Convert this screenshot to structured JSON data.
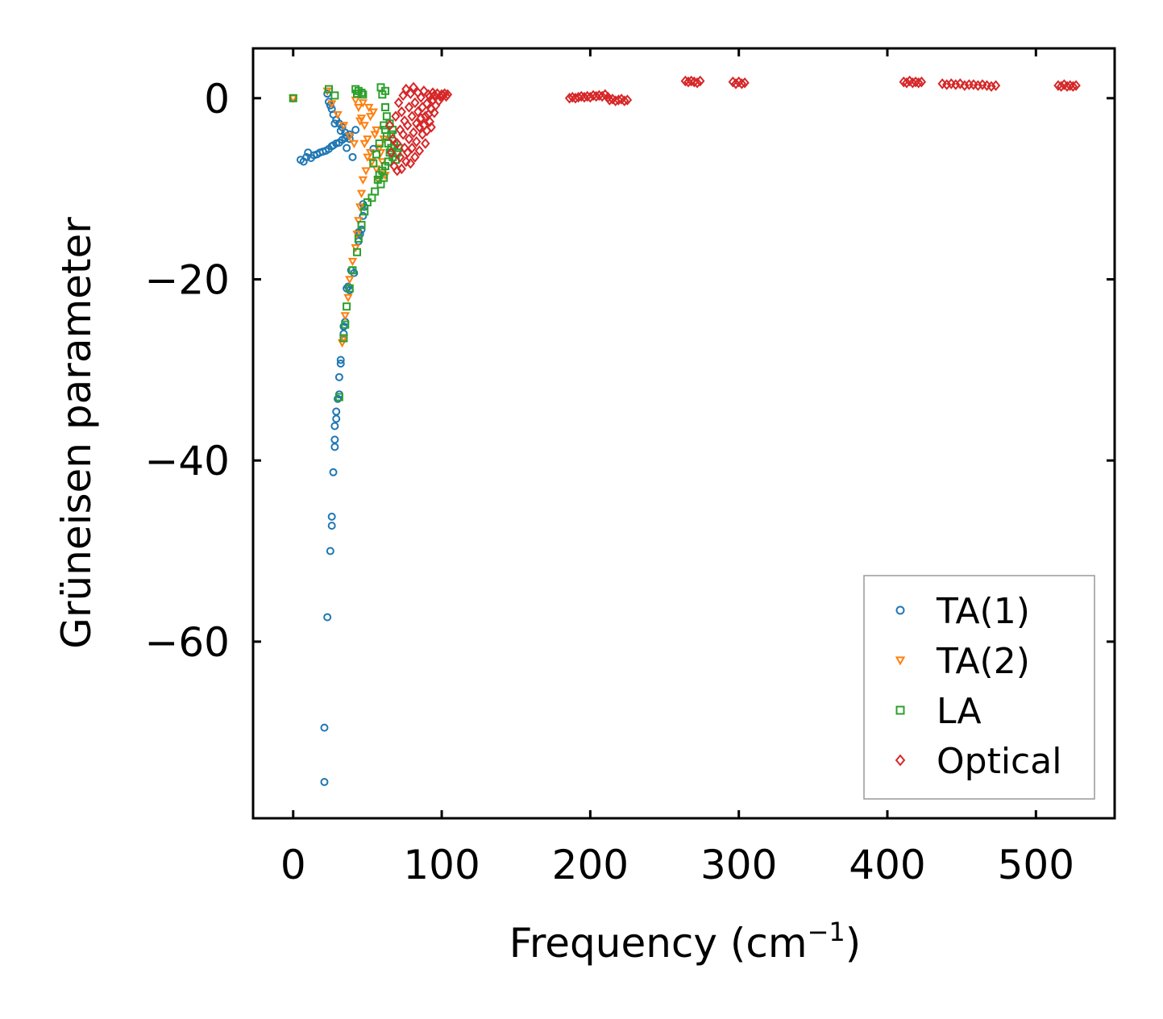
{
  "chart_data": {
    "type": "scatter",
    "title": "",
    "xlabel": "Frequency (cm",
    "xlabel_sup": "−1",
    "xlabel_end": ")",
    "ylabel": "Grüneisen parameter",
    "xlim": [
      -27,
      553
    ],
    "ylim": [
      -79.5,
      5.5
    ],
    "x_ticks": [
      0,
      100,
      200,
      300,
      400,
      500
    ],
    "x_tick_labels": [
      "0",
      "100",
      "200",
      "300",
      "400",
      "500"
    ],
    "y_ticks": [
      0,
      -20,
      -40,
      -60
    ],
    "y_tick_labels": [
      "0",
      "−20",
      "−40",
      "−60"
    ],
    "legend_position": "lower-right",
    "grid": false,
    "series": [
      {
        "name": "TA(1)",
        "color": "#1f77b4",
        "marker": "circle",
        "points": [
          [
            0,
            0
          ],
          [
            5,
            -6.8
          ],
          [
            7,
            -7
          ],
          [
            9,
            -6.5
          ],
          [
            10,
            -6
          ],
          [
            12,
            -6.6
          ],
          [
            14,
            -6.3
          ],
          [
            16,
            -6.2
          ],
          [
            18,
            -6
          ],
          [
            20,
            -5.9
          ],
          [
            22,
            -5.8
          ],
          [
            24,
            -5.6
          ],
          [
            26,
            -5.3
          ],
          [
            27,
            -5.2
          ],
          [
            29,
            -5
          ],
          [
            31,
            -4.9
          ],
          [
            33,
            -4.6
          ],
          [
            35,
            -4.4
          ],
          [
            36,
            -4.2
          ],
          [
            38,
            -4
          ],
          [
            40,
            -6.5
          ],
          [
            35,
            -3.8
          ],
          [
            33,
            -3.2
          ],
          [
            31,
            -2.8
          ],
          [
            29,
            -2.4
          ],
          [
            27,
            -1.8
          ],
          [
            26,
            -1.2
          ],
          [
            25,
            -0.8
          ],
          [
            24,
            -0.4
          ],
          [
            23,
            0.5
          ],
          [
            28,
            -2.8
          ],
          [
            32,
            -3.6
          ],
          [
            36,
            -5.5
          ],
          [
            38,
            -4.5
          ],
          [
            42,
            -3.5
          ],
          [
            44,
            -15.8
          ],
          [
            45,
            -15
          ],
          [
            44,
            -14.8
          ],
          [
            46,
            -14.5
          ],
          [
            47,
            -13
          ],
          [
            47,
            -11.7
          ],
          [
            48,
            -12
          ],
          [
            41,
            -19.3
          ],
          [
            39,
            -19
          ],
          [
            37,
            -20.8
          ],
          [
            36,
            -21
          ],
          [
            38,
            -21.2
          ],
          [
            35,
            -24.7
          ],
          [
            34,
            -25.2
          ],
          [
            34,
            -26
          ],
          [
            32,
            -28.9
          ],
          [
            32,
            -29.3
          ],
          [
            31,
            -30.8
          ],
          [
            31,
            -32.7
          ],
          [
            30,
            -33.2
          ],
          [
            29,
            -34.6
          ],
          [
            29,
            -35.4
          ],
          [
            28,
            -36.2
          ],
          [
            28,
            -37.7
          ],
          [
            28,
            -38.5
          ],
          [
            27,
            -41.3
          ],
          [
            26,
            -46.2
          ],
          [
            26,
            -47.2
          ],
          [
            25,
            -50
          ],
          [
            23,
            -57.3
          ],
          [
            21,
            -69.5
          ],
          [
            21,
            -75.5
          ],
          [
            54,
            -5.6
          ]
        ]
      },
      {
        "name": "TA(2)",
        "color": "#ff7f0e",
        "marker": "triangle-down",
        "points": [
          [
            0,
            0
          ],
          [
            23,
            0.8
          ],
          [
            26,
            -0.6
          ],
          [
            30,
            -1.8
          ],
          [
            34,
            -3
          ],
          [
            38,
            -4.2
          ],
          [
            41,
            -5
          ],
          [
            42,
            -0.2
          ],
          [
            44,
            -1
          ],
          [
            46,
            -2.2
          ],
          [
            48,
            -3
          ],
          [
            50,
            -4.5
          ],
          [
            52,
            -2
          ],
          [
            54,
            -1.5
          ],
          [
            56,
            -3.5
          ],
          [
            58,
            -5.5
          ],
          [
            60,
            -7
          ],
          [
            62,
            -8.5
          ],
          [
            50,
            -6.5
          ],
          [
            49,
            -8
          ],
          [
            47,
            -9
          ],
          [
            46,
            -10.5
          ],
          [
            45,
            -12
          ],
          [
            44,
            -13.5
          ],
          [
            43,
            -15
          ],
          [
            42,
            -16.5
          ],
          [
            40,
            -18
          ],
          [
            38,
            -20
          ],
          [
            37,
            -22
          ],
          [
            35,
            -24
          ],
          [
            34,
            -26.5
          ],
          [
            33,
            -27
          ],
          [
            48,
            -5
          ],
          [
            53,
            -7
          ],
          [
            57,
            -9
          ],
          [
            55,
            -4
          ],
          [
            59,
            -6
          ],
          [
            61,
            -4.5
          ],
          [
            45,
            -2.5
          ],
          [
            52,
            -6
          ],
          [
            56,
            -7.8
          ],
          [
            60,
            -8.2
          ],
          [
            51,
            -1
          ],
          [
            47,
            -0.5
          ]
        ]
      },
      {
        "name": "LA",
        "color": "#2ca02c",
        "marker": "square",
        "points": [
          [
            0,
            0
          ],
          [
            24,
            1
          ],
          [
            28,
            0.3
          ],
          [
            42,
            1
          ],
          [
            43,
            0.5
          ],
          [
            44,
            0.8
          ],
          [
            46,
            0.6
          ],
          [
            47,
            0.4
          ],
          [
            59,
            1.2
          ],
          [
            60,
            0.4
          ],
          [
            62,
            0.8
          ],
          [
            61,
            -3
          ],
          [
            62,
            -3.5
          ],
          [
            63,
            -4.2
          ],
          [
            64,
            -5
          ],
          [
            65,
            -6
          ],
          [
            66,
            -5.5
          ],
          [
            67,
            -6.5
          ],
          [
            64,
            -7
          ],
          [
            62,
            -7.5
          ],
          [
            60,
            -8
          ],
          [
            58,
            -8.5
          ],
          [
            57,
            -9
          ],
          [
            55,
            -10.3
          ],
          [
            53,
            -11
          ],
          [
            50,
            -11.5
          ],
          [
            48,
            -12.5
          ],
          [
            46,
            -14
          ],
          [
            44,
            -15.5
          ],
          [
            43,
            -17
          ],
          [
            40,
            -19
          ],
          [
            38,
            -21
          ],
          [
            36,
            -23
          ],
          [
            35,
            -25
          ],
          [
            34,
            -26.5
          ],
          [
            31,
            -33
          ],
          [
            66,
            -4
          ],
          [
            68,
            -5.2
          ],
          [
            70,
            -6
          ],
          [
            67,
            -3.5
          ],
          [
            65,
            -2.8
          ],
          [
            63,
            -2
          ],
          [
            62,
            -1
          ],
          [
            58,
            -5
          ],
          [
            56,
            -6.2
          ],
          [
            54,
            -7.2
          ],
          [
            59,
            -9.5
          ],
          [
            61,
            -8.8
          ],
          [
            69,
            -6.8
          ],
          [
            71,
            -5.5
          ]
        ]
      },
      {
        "name": "Optical",
        "color": "#d62728",
        "marker": "diamond",
        "points": [
          [
            65,
            -3
          ],
          [
            66,
            -6
          ],
          [
            67,
            -4.5
          ],
          [
            68,
            -7.5
          ],
          [
            69,
            -2
          ],
          [
            70,
            -5
          ],
          [
            70,
            -8
          ],
          [
            71,
            -0.5
          ],
          [
            72,
            -3.5
          ],
          [
            72,
            -6.5
          ],
          [
            73,
            -1.5
          ],
          [
            73,
            -7.8
          ],
          [
            74,
            -4
          ],
          [
            74,
            0.3
          ],
          [
            75,
            -5.5
          ],
          [
            75,
            -2.5
          ],
          [
            76,
            -7
          ],
          [
            76,
            1
          ],
          [
            77,
            -3
          ],
          [
            77,
            -6
          ],
          [
            78,
            -1
          ],
          [
            78,
            -4.5
          ],
          [
            79,
            -7.2
          ],
          [
            79,
            0.5
          ],
          [
            80,
            -2
          ],
          [
            80,
            -5.5
          ],
          [
            81,
            -3.8
          ],
          [
            81,
            1.2
          ],
          [
            82,
            -6.5
          ],
          [
            82,
            -0.5
          ],
          [
            83,
            -2.8
          ],
          [
            83,
            -4.8
          ],
          [
            84,
            -1.5
          ],
          [
            84,
            0.6
          ],
          [
            85,
            -5.8
          ],
          [
            85,
            -3.2
          ],
          [
            86,
            -2.2
          ],
          [
            86,
            0.1
          ],
          [
            87,
            -4
          ],
          [
            87,
            -1
          ],
          [
            88,
            -3
          ],
          [
            88,
            0.8
          ],
          [
            89,
            -5
          ],
          [
            89,
            -2
          ],
          [
            90,
            -0.6
          ],
          [
            90,
            -3.6
          ],
          [
            91,
            -1.8
          ],
          [
            91,
            0.4
          ],
          [
            92,
            -2.6
          ],
          [
            92,
            0.2
          ],
          [
            93,
            -1.2
          ],
          [
            93,
            -3.2
          ],
          [
            94,
            -0.2
          ],
          [
            94,
            0.6
          ],
          [
            95,
            -1.6
          ],
          [
            95,
            0.3
          ],
          [
            96,
            -0.8
          ],
          [
            97,
            0.5
          ],
          [
            98,
            -0.3
          ],
          [
            99,
            0.2
          ],
          [
            100,
            0.4
          ],
          [
            101,
            0.3
          ],
          [
            102,
            0.5
          ],
          [
            103,
            0.2
          ],
          [
            104,
            0.4
          ],
          [
            186,
            0
          ],
          [
            188,
            0.1
          ],
          [
            190,
            0
          ],
          [
            192,
            0.1
          ],
          [
            194,
            0.2
          ],
          [
            196,
            0.1
          ],
          [
            198,
            0.2
          ],
          [
            200,
            0.1
          ],
          [
            202,
            0.3
          ],
          [
            204,
            0.2
          ],
          [
            206,
            0.3
          ],
          [
            208,
            0.2
          ],
          [
            210,
            0.4
          ],
          [
            212,
            0.1
          ],
          [
            213,
            -0.2
          ],
          [
            215,
            -0.1
          ],
          [
            217,
            -0.3
          ],
          [
            219,
            -0.2
          ],
          [
            221,
            -0.1
          ],
          [
            223,
            -0.3
          ],
          [
            225,
            -0.2
          ],
          [
            264,
            1.9
          ],
          [
            266,
            1.8
          ],
          [
            268,
            1.9
          ],
          [
            270,
            1.8
          ],
          [
            272,
            1.7
          ],
          [
            274,
            1.9
          ],
          [
            296,
            1.8
          ],
          [
            298,
            1.6
          ],
          [
            300,
            1.8
          ],
          [
            302,
            1.6
          ],
          [
            304,
            1.7
          ],
          [
            411,
            1.8
          ],
          [
            413,
            1.7
          ],
          [
            415,
            1.9
          ],
          [
            417,
            1.7
          ],
          [
            419,
            1.8
          ],
          [
            421,
            1.7
          ],
          [
            423,
            1.8
          ],
          [
            437,
            1.6
          ],
          [
            440,
            1.5
          ],
          [
            443,
            1.6
          ],
          [
            446,
            1.5
          ],
          [
            449,
            1.6
          ],
          [
            452,
            1.4
          ],
          [
            455,
            1.5
          ],
          [
            458,
            1.5
          ],
          [
            461,
            1.4
          ],
          [
            464,
            1.5
          ],
          [
            467,
            1.4
          ],
          [
            470,
            1.3
          ],
          [
            473,
            1.4
          ],
          [
            515,
            1.4
          ],
          [
            517,
            1.3
          ],
          [
            519,
            1.5
          ],
          [
            521,
            1.3
          ],
          [
            523,
            1.4
          ],
          [
            525,
            1.3
          ],
          [
            527,
            1.4
          ]
        ]
      }
    ]
  }
}
